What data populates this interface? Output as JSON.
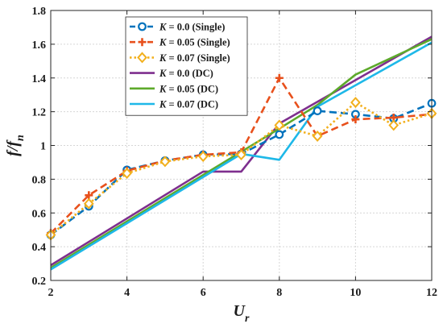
{
  "chart_data": {
    "type": "line",
    "title": "",
    "xlabel": "U",
    "xlabel_sub": "r",
    "ylabel": "f/f",
    "ylabel_sub": "n",
    "xlim": [
      2,
      12
    ],
    "ylim": [
      0.2,
      1.8
    ],
    "xticks": [
      2,
      4,
      6,
      8,
      10,
      12
    ],
    "yticks": [
      0.2,
      0.4,
      0.6,
      0.8,
      1,
      1.2,
      1.4,
      1.6,
      1.8
    ],
    "ytick_labels": [
      "0.2",
      "0.4",
      "0.6",
      "0.8",
      "1",
      "1.2",
      "1.4",
      "1.6",
      "1.8"
    ],
    "grid": true,
    "legend_position": "top-left",
    "series": [
      {
        "name": "K = 0.0 (Single)",
        "legend_symbol": "K",
        "legend_rest": " = 0.0 (Single)",
        "color": "#0072BD",
        "dash": "dashed",
        "marker": "circle",
        "x": [
          2,
          3,
          4,
          5,
          6,
          7,
          8,
          9,
          10,
          11,
          12
        ],
        "y": [
          0.47,
          0.64,
          0.855,
          0.91,
          0.945,
          0.95,
          1.065,
          1.205,
          1.185,
          1.16,
          1.25
        ]
      },
      {
        "name": "K = 0.05 (Single)",
        "legend_symbol": "K",
        "legend_rest": " = 0.05 (Single)",
        "color": "#E8501C",
        "dash": "dashed",
        "marker": "plus",
        "x": [
          2,
          3,
          4,
          5,
          6,
          7,
          8,
          9,
          10,
          11,
          12
        ],
        "y": [
          0.48,
          0.705,
          0.85,
          0.91,
          0.945,
          0.96,
          1.4,
          1.055,
          1.155,
          1.165,
          1.185
        ]
      },
      {
        "name": "K = 0.07 (Single)",
        "legend_symbol": "K",
        "legend_rest": " = 0.07 (Single)",
        "color": "#F2B01E",
        "dash": "dotted",
        "marker": "diamond",
        "x": [
          2,
          3,
          4,
          5,
          6,
          7,
          8,
          9,
          10,
          11,
          12
        ],
        "y": [
          0.47,
          0.655,
          0.835,
          0.905,
          0.935,
          0.945,
          1.12,
          1.055,
          1.255,
          1.12,
          1.19
        ]
      },
      {
        "name": "K = 0.0 (DC)",
        "legend_symbol": "K",
        "legend_rest": " = 0.0 (DC)",
        "color": "#7E2F8E",
        "dash": "solid",
        "marker": "none",
        "x": [
          2,
          6,
          7,
          8,
          12
        ],
        "y": [
          0.29,
          0.845,
          0.845,
          1.13,
          1.645
        ]
      },
      {
        "name": "K = 0.05 (DC)",
        "legend_symbol": "K",
        "legend_rest": " = 0.05 (DC)",
        "color": "#5DAA2B",
        "dash": "solid",
        "marker": "none",
        "x": [
          2,
          8,
          9,
          10,
          12
        ],
        "y": [
          0.275,
          1.1,
          1.24,
          1.42,
          1.63
        ]
      },
      {
        "name": "K = 0.07 (DC)",
        "legend_symbol": "K",
        "legend_rest": " = 0.07 (DC)",
        "color": "#1EB8E8",
        "dash": "solid",
        "marker": "none",
        "x": [
          2,
          7,
          8,
          9,
          12
        ],
        "y": [
          0.265,
          0.95,
          0.915,
          1.23,
          1.61
        ]
      }
    ]
  }
}
